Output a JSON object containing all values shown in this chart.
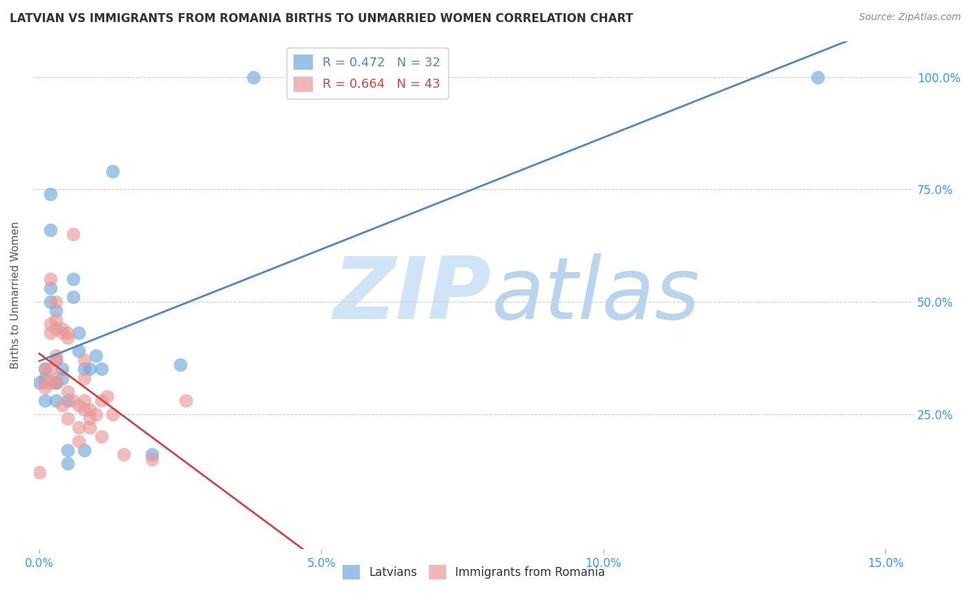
{
  "title": "LATVIAN VS IMMIGRANTS FROM ROMANIA BIRTHS TO UNMARRIED WOMEN CORRELATION CHART",
  "source": "Source: ZipAtlas.com",
  "ylabel": "Births to Unmarried Women",
  "xlabel_ticks": [
    "0.0%",
    "5.0%",
    "10.0%",
    "15.0%"
  ],
  "xlabel_vals": [
    0.0,
    5.0,
    10.0,
    15.0
  ],
  "ylabel_ticks_right": [
    "25.0%",
    "50.0%",
    "75.0%",
    "100.0%"
  ],
  "ylabel_vals": [
    25.0,
    50.0,
    75.0,
    100.0
  ],
  "xlim": [
    -0.1,
    15.5
  ],
  "ylim": [
    -5.0,
    108.0
  ],
  "r_latvian": 0.472,
  "n_latvian": 32,
  "r_romania": 0.664,
  "n_romania": 43,
  "latvian_color": "#6fa8dc",
  "romania_color": "#ea9999",
  "trendline_latvian_color": "#4a86c8",
  "trendline_romania_color": "#cc4444",
  "watermark_zip": "ZIP",
  "watermark_atlas": "atlas",
  "watermark_color": "#d0e4f7",
  "latvian_x": [
    0.0,
    0.1,
    0.1,
    0.1,
    0.2,
    0.2,
    0.2,
    0.2,
    0.3,
    0.3,
    0.3,
    0.3,
    0.3,
    0.4,
    0.4,
    0.5,
    0.5,
    0.5,
    0.6,
    0.6,
    0.7,
    0.7,
    0.8,
    0.8,
    0.9,
    1.0,
    1.1,
    1.3,
    2.0,
    2.5,
    3.8,
    13.8
  ],
  "latvian_y": [
    32.0,
    35.0,
    33.0,
    28.0,
    66.0,
    74.0,
    53.0,
    50.0,
    48.0,
    37.0,
    32.0,
    32.0,
    28.0,
    35.0,
    33.0,
    28.0,
    17.0,
    14.0,
    55.0,
    51.0,
    43.0,
    39.0,
    35.0,
    17.0,
    35.0,
    38.0,
    35.0,
    79.0,
    16.0,
    36.0,
    100.0,
    100.0
  ],
  "romania_x": [
    0.0,
    0.1,
    0.1,
    0.1,
    0.2,
    0.2,
    0.2,
    0.2,
    0.2,
    0.3,
    0.3,
    0.3,
    0.3,
    0.3,
    0.3,
    0.3,
    0.4,
    0.4,
    0.4,
    0.5,
    0.5,
    0.5,
    0.5,
    0.6,
    0.6,
    0.7,
    0.7,
    0.7,
    0.8,
    0.8,
    0.8,
    0.8,
    0.9,
    0.9,
    0.9,
    1.0,
    1.1,
    1.1,
    1.2,
    1.3,
    1.5,
    2.0,
    2.6
  ],
  "romania_y": [
    12.0,
    35.0,
    32.0,
    31.0,
    55.0,
    45.0,
    43.0,
    35.0,
    32.0,
    50.0,
    46.0,
    44.0,
    38.0,
    37.0,
    33.0,
    32.0,
    44.0,
    43.0,
    27.0,
    43.0,
    42.0,
    30.0,
    24.0,
    65.0,
    28.0,
    27.0,
    22.0,
    19.0,
    37.0,
    33.0,
    28.0,
    26.0,
    26.0,
    24.0,
    22.0,
    25.0,
    28.0,
    20.0,
    29.0,
    25.0,
    16.0,
    15.0,
    28.0
  ],
  "grid_color": "#cccccc",
  "background_color": "#ffffff",
  "legend_label_latvian": "Latvians",
  "legend_label_romania": "Immigrants from Romania"
}
